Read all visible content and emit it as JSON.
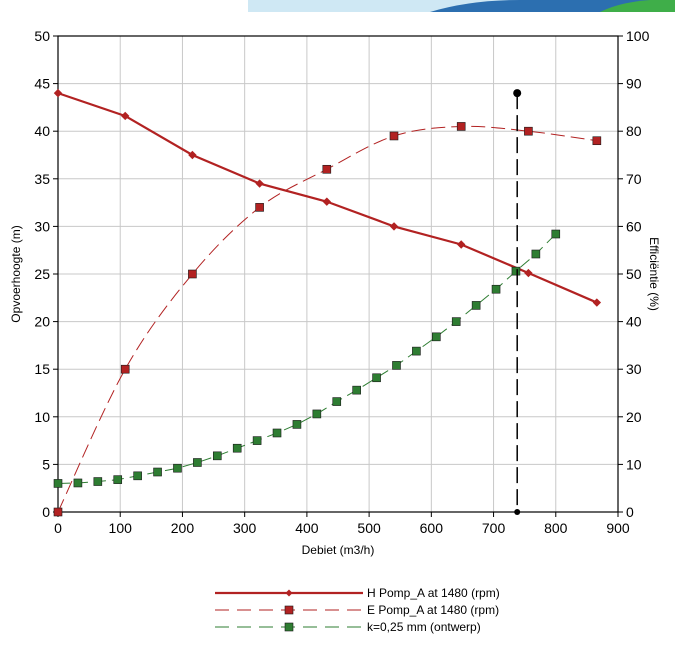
{
  "chart_data": {
    "type": "line",
    "xlabel": "Debiet (m3/h)",
    "ylabel": "Opvoerhoogte (m)",
    "y2label": "Efficiëntie (%)",
    "xlim": [
      0,
      900
    ],
    "ylim": [
      0,
      50
    ],
    "y2lim": [
      0,
      100
    ],
    "xticks": [
      "0",
      "100",
      "200",
      "300",
      "400",
      "500",
      "600",
      "700",
      "800",
      "900"
    ],
    "yticks": [
      "0",
      "5",
      "10",
      "15",
      "20",
      "25",
      "30",
      "35",
      "40",
      "45",
      "50"
    ],
    "y2ticks": [
      "0",
      "10",
      "20",
      "30",
      "40",
      "50",
      "60",
      "70",
      "80",
      "90",
      "100"
    ],
    "grid": true,
    "legend_position": "bottom",
    "series": [
      {
        "name": "H Pomp_A at 1480 (rpm)",
        "axis": "left",
        "color": "#b22222",
        "style": "solid",
        "marker": "diamond",
        "x": [
          0,
          108,
          216,
          324,
          432,
          540,
          648,
          756,
          866
        ],
        "y": [
          44,
          41.6,
          37.5,
          34.5,
          32.6,
          30,
          28.1,
          25.1,
          22
        ]
      },
      {
        "name": "E Pomp_A at 1480 (rpm)",
        "axis": "right",
        "color": "#b22222",
        "style": "dashed",
        "marker": "square",
        "x": [
          0,
          108,
          216,
          324,
          432,
          540,
          648,
          756,
          866
        ],
        "y": [
          0,
          30,
          50,
          64,
          72,
          79,
          81,
          80,
          78
        ]
      },
      {
        "name": "k=0,25 mm (ontwerp)",
        "axis": "left",
        "color": "#2e7d32",
        "style": "dashed",
        "marker": "square",
        "x": [
          0,
          32,
          64,
          96,
          128,
          160,
          192,
          224,
          256,
          288,
          320,
          352,
          384,
          416,
          448,
          480,
          512,
          544,
          576,
          608,
          640,
          672,
          704,
          736,
          768,
          800
        ],
        "y": [
          3,
          3.05,
          3.2,
          3.4,
          3.8,
          4.2,
          4.6,
          5.2,
          5.9,
          6.7,
          7.5,
          8.3,
          9.2,
          10.3,
          11.6,
          12.8,
          14.1,
          15.4,
          16.9,
          18.4,
          20,
          21.7,
          23.4,
          25.3,
          27.1,
          29.2
        ]
      }
    ],
    "annotations": [
      {
        "type": "vertical_dashed_line",
        "x": 738,
        "y_top": 44,
        "y_bottom": 0,
        "color": "#000000"
      }
    ]
  }
}
